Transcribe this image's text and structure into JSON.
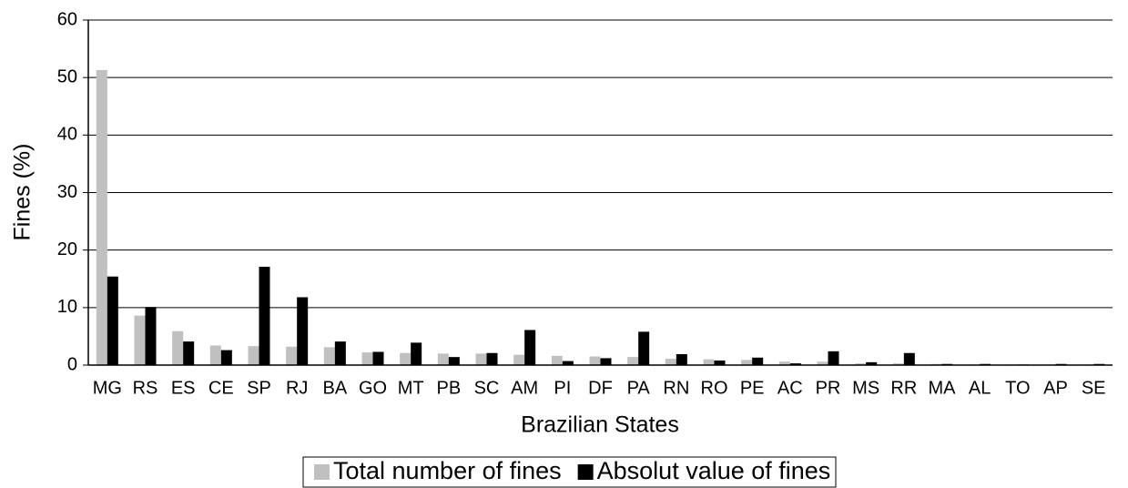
{
  "chart_data": {
    "type": "bar",
    "x_label": "Brazilian States",
    "y_label": "Fines (%)",
    "categories": [
      "MG",
      "RS",
      "ES",
      "CE",
      "SP",
      "RJ",
      "BA",
      "GO",
      "MT",
      "PB",
      "SC",
      "AM",
      "PI",
      "DF",
      "PA",
      "RN",
      "RO",
      "PE",
      "AC",
      "PR",
      "MS",
      "RR",
      "MA",
      "AL",
      "TO",
      "AP",
      "SE"
    ],
    "series": [
      {
        "name": "Total number of fines",
        "color": "#c0c0c0",
        "values": [
          51.3,
          8.6,
          5.9,
          3.4,
          3.3,
          3.2,
          3.1,
          2.2,
          2.1,
          2.0,
          2.0,
          1.8,
          1.6,
          1.5,
          1.4,
          1.1,
          1.0,
          0.9,
          0.6,
          0.6,
          0.3,
          0.3,
          0.2,
          0.1,
          0.1,
          0.1,
          0.1
        ]
      },
      {
        "name": "Absolut value of fines",
        "color": "#000000",
        "values": [
          15.4,
          10.1,
          4.1,
          2.6,
          17.1,
          11.8,
          4.1,
          2.3,
          3.9,
          1.4,
          2.1,
          6.1,
          0.7,
          1.2,
          5.8,
          1.9,
          0.8,
          1.3,
          0.3,
          2.4,
          0.5,
          2.1,
          0.2,
          0.2,
          0.1,
          0.2,
          0.2
        ]
      }
    ],
    "ylim": [
      0,
      60
    ],
    "yticks": [
      0,
      10,
      20,
      30,
      40,
      50,
      60
    ],
    "grid": true,
    "legend": "bottom"
  }
}
